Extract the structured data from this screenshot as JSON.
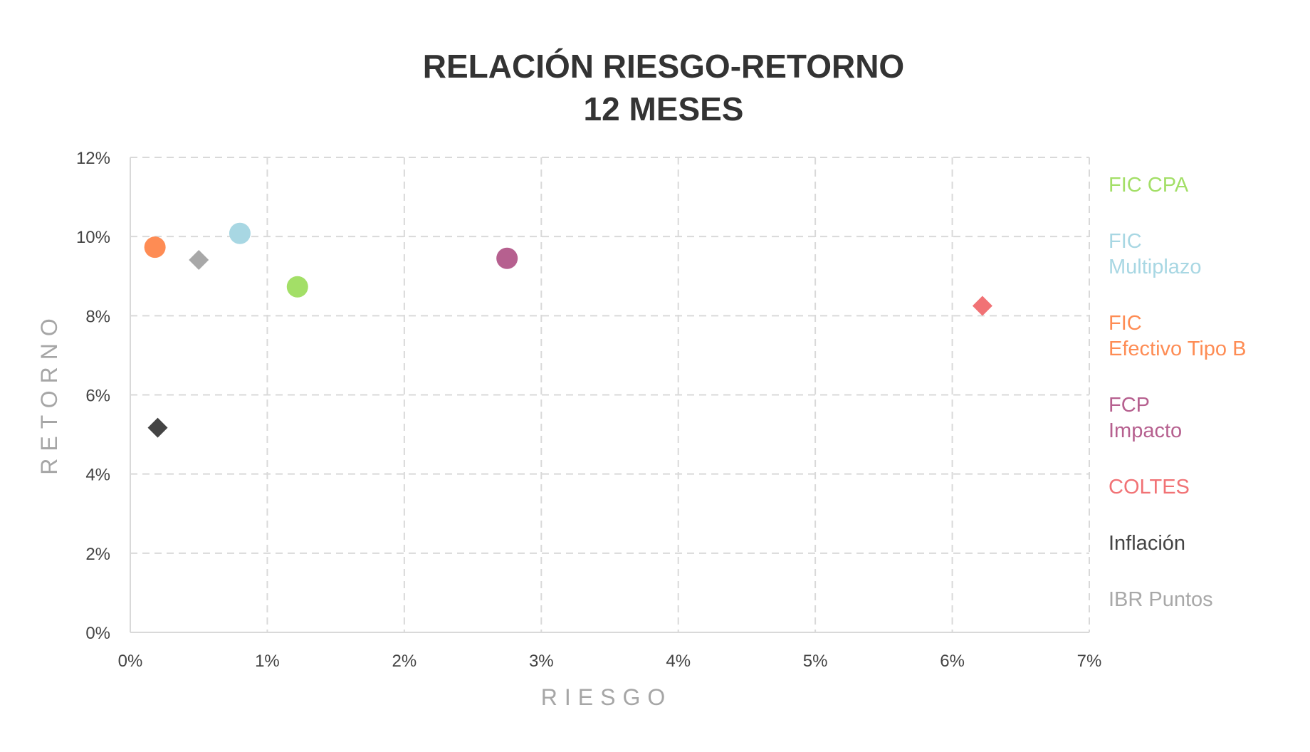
{
  "chart_data": {
    "type": "scatter",
    "title": [
      "RELACIÓN RIESGO-RETORNO",
      "12 MESES"
    ],
    "xlabel": "RIESGO",
    "ylabel": "RETORNO",
    "xlim": [
      0,
      0.07
    ],
    "ylim": [
      0,
      0.12
    ],
    "x_ticks": [
      {
        "value": 0,
        "label": "0%"
      },
      {
        "value": 0.01,
        "label": "1%"
      },
      {
        "value": 0.02,
        "label": "2%"
      },
      {
        "value": 0.03,
        "label": "3%"
      },
      {
        "value": 0.04,
        "label": "4%"
      },
      {
        "value": 0.05,
        "label": "5%"
      },
      {
        "value": 0.06,
        "label": "6%"
      },
      {
        "value": 0.07,
        "label": "7%"
      }
    ],
    "y_ticks": [
      {
        "value": 0,
        "label": "0%"
      },
      {
        "value": 0.02,
        "label": "2%"
      },
      {
        "value": 0.04,
        "label": "4%"
      },
      {
        "value": 0.06,
        "label": "6%"
      },
      {
        "value": 0.08,
        "label": "8%"
      },
      {
        "value": 0.1,
        "label": "10%"
      },
      {
        "value": 0.12,
        "label": "12%"
      }
    ],
    "grid": true,
    "legend_position": "right",
    "series": [
      {
        "name": [
          "FIC CPA"
        ],
        "color": "#a3df67",
        "marker": "circle",
        "x": 0.0122,
        "y": 0.0873
      },
      {
        "name": [
          "FIC",
          "Multiplazo"
        ],
        "color": "#a8d7e3",
        "marker": "circle",
        "x": 0.008,
        "y": 0.1008
      },
      {
        "name": [
          "FIC",
          "Efectivo Tipo B"
        ],
        "color": "#fe8c54",
        "marker": "circle",
        "x": 0.0018,
        "y": 0.0973
      },
      {
        "name": [
          "FCP",
          "Impacto"
        ],
        "color": "#b6608f",
        "marker": "circle",
        "x": 0.0275,
        "y": 0.0945
      },
      {
        "name": [
          "COLTES"
        ],
        "color": "#f17275",
        "marker": "diamond",
        "x": 0.0622,
        "y": 0.0825
      },
      {
        "name": [
          "Inflación"
        ],
        "color": "#444444",
        "marker": "diamond",
        "x": 0.002,
        "y": 0.0517
      },
      {
        "name": [
          "IBR Puntos"
        ],
        "color": "#a8a8a8",
        "marker": "diamond",
        "x": 0.005,
        "y": 0.0941
      }
    ]
  }
}
